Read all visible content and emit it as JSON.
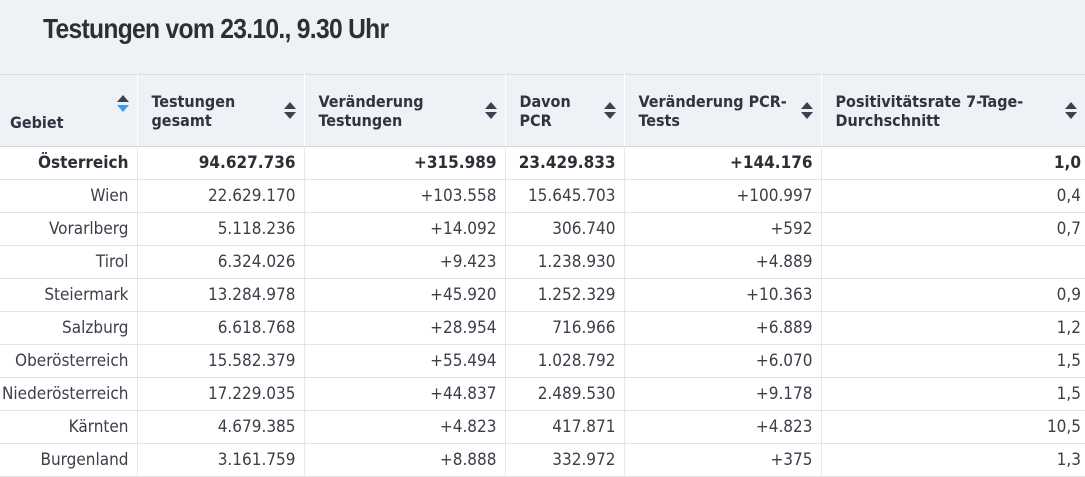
{
  "header": {
    "title": "Testungen vom 23.10., 9.30 Uhr"
  },
  "colors": {
    "header_bg": "#eef1f5",
    "sort_active": "#3d9be9",
    "sort_inactive": "#3b4150"
  },
  "table": {
    "columns": [
      {
        "label": "Gebiet",
        "sort": "descending",
        "sort_icon": "sort-descending-icon"
      },
      {
        "label": "Testungen gesamt",
        "sort": "none",
        "sort_icon": "sort-icon"
      },
      {
        "label": "Veränderung Testungen",
        "sort": "none",
        "sort_icon": "sort-icon"
      },
      {
        "label": "Davon PCR",
        "sort": "none",
        "sort_icon": "sort-icon"
      },
      {
        "label": "Veränderung PCR-Tests",
        "sort": "none",
        "sort_icon": "sort-icon"
      },
      {
        "label": "Positivitätsrate 7-Tage-Durchschnitt",
        "sort": "none",
        "sort_icon": "sort-icon"
      }
    ],
    "rows": [
      {
        "bold": true,
        "cells": [
          "Österreich",
          "94.627.736",
          "+315.989",
          "23.429.833",
          "+144.176",
          "1,0"
        ]
      },
      {
        "bold": false,
        "cells": [
          "Wien",
          "22.629.170",
          "+103.558",
          "15.645.703",
          "+100.997",
          "0,4"
        ]
      },
      {
        "bold": false,
        "cells": [
          "Vorarlberg",
          "5.118.236",
          "+14.092",
          "306.740",
          "+592",
          "0,7"
        ]
      },
      {
        "bold": false,
        "cells": [
          "Tirol",
          "6.324.026",
          "+9.423",
          "1.238.930",
          "+4.889",
          ""
        ]
      },
      {
        "bold": false,
        "cells": [
          "Steiermark",
          "13.284.978",
          "+45.920",
          "1.252.329",
          "+10.363",
          "0,9"
        ]
      },
      {
        "bold": false,
        "cells": [
          "Salzburg",
          "6.618.768",
          "+28.954",
          "716.966",
          "+6.889",
          "1,2"
        ]
      },
      {
        "bold": false,
        "cells": [
          "Oberösterreich",
          "15.582.379",
          "+55.494",
          "1.028.792",
          "+6.070",
          "1,5"
        ]
      },
      {
        "bold": false,
        "cells": [
          "Niederösterreich",
          "17.229.035",
          "+44.837",
          "2.489.530",
          "+9.178",
          "1,5"
        ]
      },
      {
        "bold": false,
        "cells": [
          "Kärnten",
          "4.679.385",
          "+4.823",
          "417.871",
          "+4.823",
          "10,5"
        ]
      },
      {
        "bold": false,
        "cells": [
          "Burgenland",
          "3.161.759",
          "+8.888",
          "332.972",
          "+375",
          "1,3"
        ]
      }
    ]
  }
}
